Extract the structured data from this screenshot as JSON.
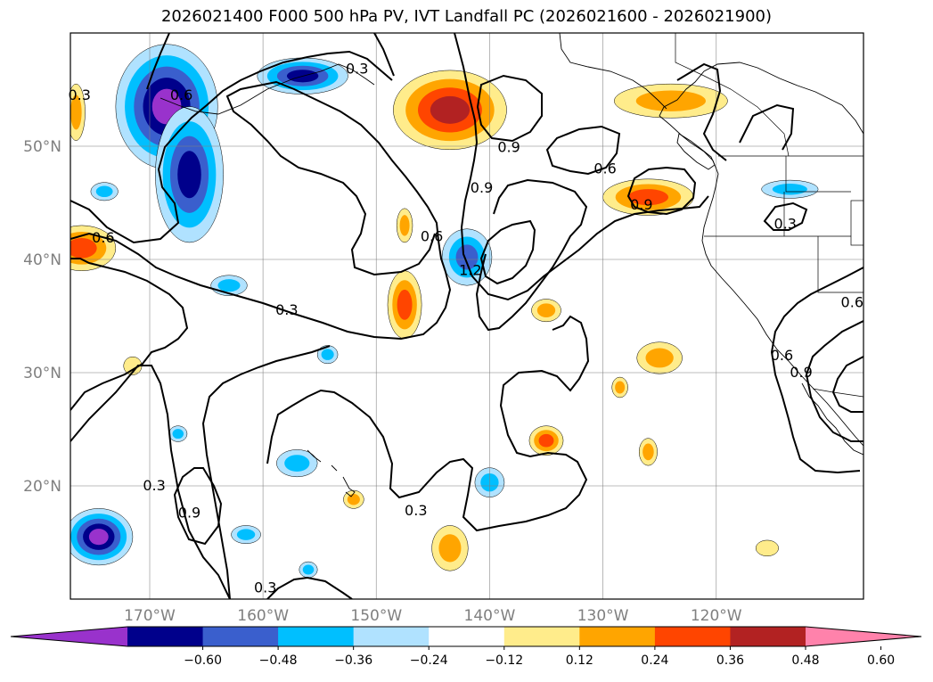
{
  "chart_data": {
    "type": "filled_contour_map",
    "title": "2026021400 F000 500 hPa PV, IVT Landfall PC (2026021600 - 2026021900)",
    "map": {
      "lon_range": [
        -177,
        -107
      ],
      "lat_range": [
        10,
        60
      ],
      "lat_ticks": [
        20,
        30,
        40,
        50
      ],
      "lat_tick_labels": [
        "20°N",
        "30°N",
        "40°N",
        "50°N"
      ],
      "lon_ticks": [
        -170,
        -160,
        -150,
        -140,
        -130,
        -120
      ],
      "lon_tick_labels": [
        "170°W",
        "160°W",
        "150°W",
        "140°W",
        "130°W",
        "120°W"
      ],
      "grid": true
    },
    "shading": {
      "levels": [
        -0.6,
        -0.48,
        -0.36,
        -0.24,
        -0.12,
        0.12,
        0.24,
        0.36,
        0.48,
        0.6
      ],
      "tick_labels": [
        "−0.60",
        "−0.48",
        "−0.36",
        "−0.24",
        "−0.12",
        "0.12",
        "0.24",
        "0.36",
        "0.48",
        "0.60"
      ],
      "colors": [
        "#9932cc",
        "#00008b",
        "#3a5fcd",
        "#00bfff",
        "#b0e2ff",
        "#ffffff",
        "#ffec8b",
        "#ffa500",
        "#ff4500",
        "#b22222",
        "#ff82ab"
      ],
      "features": [
        {
          "lon": -168.5,
          "lat": 53.5,
          "rx": 4.5,
          "ry": 5.5,
          "value": -0.6
        },
        {
          "lon": -166.5,
          "lat": 47.5,
          "rx": 3.0,
          "ry": 6.0,
          "value": -0.48
        },
        {
          "lon": -156.5,
          "lat": 56.2,
          "rx": 4.0,
          "ry": 1.6,
          "value": -0.48
        },
        {
          "lon": -174.5,
          "lat": 15.5,
          "rx": 3.0,
          "ry": 2.5,
          "value": -0.6
        },
        {
          "lon": -142.0,
          "lat": 40.2,
          "rx": 2.2,
          "ry": 2.5,
          "value": -0.36
        },
        {
          "lon": -113.5,
          "lat": 46.2,
          "rx": 2.5,
          "ry": 0.8,
          "value": -0.24
        },
        {
          "lon": -174.0,
          "lat": 46.0,
          "rx": 1.2,
          "ry": 0.8,
          "value": -0.24
        },
        {
          "lon": -163.0,
          "lat": 37.7,
          "rx": 1.6,
          "ry": 0.9,
          "value": -0.24
        },
        {
          "lon": -157.0,
          "lat": 22.0,
          "rx": 1.8,
          "ry": 1.2,
          "value": -0.24
        },
        {
          "lon": -140.0,
          "lat": 20.3,
          "rx": 1.3,
          "ry": 1.3,
          "value": -0.24
        },
        {
          "lon": -161.5,
          "lat": 15.7,
          "rx": 1.3,
          "ry": 0.8,
          "value": -0.24
        },
        {
          "lon": -154.3,
          "lat": 31.6,
          "rx": 0.9,
          "ry": 0.8,
          "value": -0.24
        },
        {
          "lon": -156.0,
          "lat": 12.6,
          "rx": 0.8,
          "ry": 0.7,
          "value": -0.24
        },
        {
          "lon": -167.5,
          "lat": 24.6,
          "rx": 0.8,
          "ry": 0.7,
          "value": -0.24
        },
        {
          "lon": -143.5,
          "lat": 53.2,
          "rx": 5.0,
          "ry": 3.5,
          "value": 0.48
        },
        {
          "lon": -126.0,
          "lat": 45.5,
          "rx": 4.0,
          "ry": 1.6,
          "value": 0.36
        },
        {
          "lon": -124.0,
          "lat": 54.0,
          "rx": 5.0,
          "ry": 1.5,
          "value": 0.24
        },
        {
          "lon": -176.0,
          "lat": 41.0,
          "rx": 3.0,
          "ry": 2.0,
          "value": 0.36
        },
        {
          "lon": -176.5,
          "lat": 53.0,
          "rx": 0.8,
          "ry": 2.5,
          "value": 0.24
        },
        {
          "lon": -147.5,
          "lat": 36.0,
          "rx": 1.5,
          "ry": 3.0,
          "value": 0.36
        },
        {
          "lon": -135.0,
          "lat": 24.0,
          "rx": 1.5,
          "ry": 1.3,
          "value": 0.36
        },
        {
          "lon": -125.0,
          "lat": 31.3,
          "rx": 2.0,
          "ry": 1.4,
          "value": 0.24
        },
        {
          "lon": -135.0,
          "lat": 35.5,
          "rx": 1.3,
          "ry": 1.0,
          "value": 0.24
        },
        {
          "lon": -143.5,
          "lat": 14.5,
          "rx": 1.6,
          "ry": 2.0,
          "value": 0.24
        },
        {
          "lon": -147.5,
          "lat": 43.0,
          "rx": 0.7,
          "ry": 1.5,
          "value": 0.24
        },
        {
          "lon": -128.5,
          "lat": 28.7,
          "rx": 0.7,
          "ry": 0.9,
          "value": 0.24
        },
        {
          "lon": -126.0,
          "lat": 23.0,
          "rx": 0.8,
          "ry": 1.2,
          "value": 0.24
        },
        {
          "lon": -152.0,
          "lat": 18.8,
          "rx": 0.9,
          "ry": 0.8,
          "value": 0.24
        },
        {
          "lon": -115.5,
          "lat": 14.5,
          "rx": 1.0,
          "ry": 0.7,
          "value": 0.12
        },
        {
          "lon": -171.5,
          "lat": 30.6,
          "rx": 0.8,
          "ry": 0.8,
          "value": 0.12
        }
      ]
    },
    "contours": {
      "levels": [
        0.3,
        0.6,
        0.9,
        1.2
      ],
      "labels": [
        {
          "text": "0.3",
          "lon": -176.2,
          "lat": 54.5
        },
        {
          "text": "0.6",
          "lon": -167.2,
          "lat": 54.5
        },
        {
          "text": "0.3",
          "lon": -151.7,
          "lat": 56.8
        },
        {
          "text": "0.9",
          "lon": -138.3,
          "lat": 49.9
        },
        {
          "text": "0.6",
          "lon": -129.8,
          "lat": 48.0
        },
        {
          "text": "0.9",
          "lon": -140.7,
          "lat": 46.3
        },
        {
          "text": "0.6",
          "lon": -174.1,
          "lat": 41.9
        },
        {
          "text": "0.6",
          "lon": -145.1,
          "lat": 42.0
        },
        {
          "text": "1.2",
          "lon": -141.7,
          "lat": 39.0
        },
        {
          "text": "0.9",
          "lon": -126.6,
          "lat": 44.8
        },
        {
          "text": "0.3",
          "lon": -113.9,
          "lat": 43.1
        },
        {
          "text": "0.6",
          "lon": -108.0,
          "lat": 36.2
        },
        {
          "text": "0.3",
          "lon": -157.9,
          "lat": 35.5
        },
        {
          "text": "0.6",
          "lon": -114.2,
          "lat": 31.5
        },
        {
          "text": "0.9",
          "lon": -112.5,
          "lat": 30.0
        },
        {
          "text": "0.3",
          "lon": -169.6,
          "lat": 20.0
        },
        {
          "text": "0.9",
          "lon": -166.5,
          "lat": 17.6
        },
        {
          "text": "0.3",
          "lon": -146.5,
          "lat": 17.8
        },
        {
          "text": "0.3",
          "lon": -159.8,
          "lat": 11.0
        }
      ]
    },
    "colorbar": {
      "orientation": "horizontal",
      "extend": "both"
    }
  }
}
